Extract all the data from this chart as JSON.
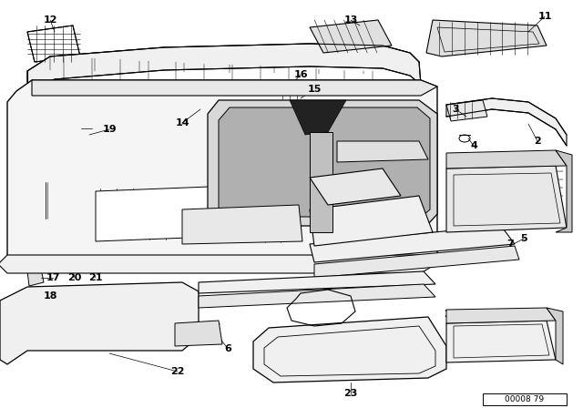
{
  "bg_color": "#ffffff",
  "line_color": "#000000",
  "ref_code": "00008 79",
  "dpi": 100,
  "fig_w": 6.4,
  "fig_h": 4.48
}
